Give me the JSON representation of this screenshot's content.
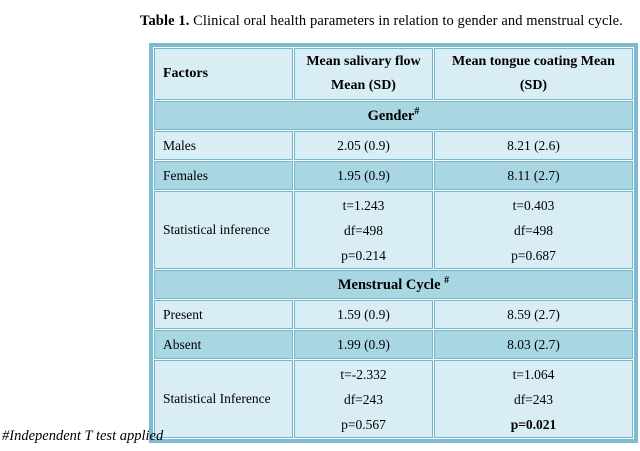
{
  "title": {
    "label": "Table 1.",
    "text": " Clinical oral health parameters in relation to gender and menstrual cycle."
  },
  "footnote": "#Independent T test applied",
  "colors": {
    "row_light": "#d9edf4",
    "row_dark": "#a8d7e3",
    "grid_border": "#74b7cd",
    "outer_border": "#7cbcd2"
  },
  "table": {
    "headers": {
      "col1": "Factors",
      "col2_line1": "Mean salivary flow",
      "col2_line2": "Mean (SD)",
      "col3_line1": "Mean tongue coating Mean",
      "col3_line2": "(SD)"
    },
    "sections": [
      {
        "band": "Gender",
        "band_sup": "#",
        "rows": [
          {
            "label": "Males",
            "values": [
              "2.05 (0.9)",
              "8.21 (2.6)"
            ]
          },
          {
            "label": "Females",
            "values": [
              "1.95 (0.9)",
              "8.11 (2.7)"
            ]
          }
        ],
        "stat": {
          "label": "Statistical inference",
          "col2": [
            "t=1.243",
            "df=498",
            "p=0.214"
          ],
          "col3": [
            "t=0.403",
            "df=498",
            "p=0.687"
          ]
        }
      },
      {
        "band": "Menstrual Cycle",
        "band_sup": "#",
        "rows": [
          {
            "label": "Present",
            "values": [
              "1.59 (0.9)",
              "8.59 (2.7)"
            ]
          },
          {
            "label": "Absent",
            "values": [
              "1.99 (0.9)",
              "8.03 (2.7)"
            ]
          }
        ],
        "stat": {
          "label": "Statistical Inference",
          "col2": [
            "t=-2.332",
            "df=243",
            "p=0.567"
          ],
          "col3": [
            "t=1.064",
            "df=243",
            "p=0.021"
          ]
        }
      }
    ]
  }
}
